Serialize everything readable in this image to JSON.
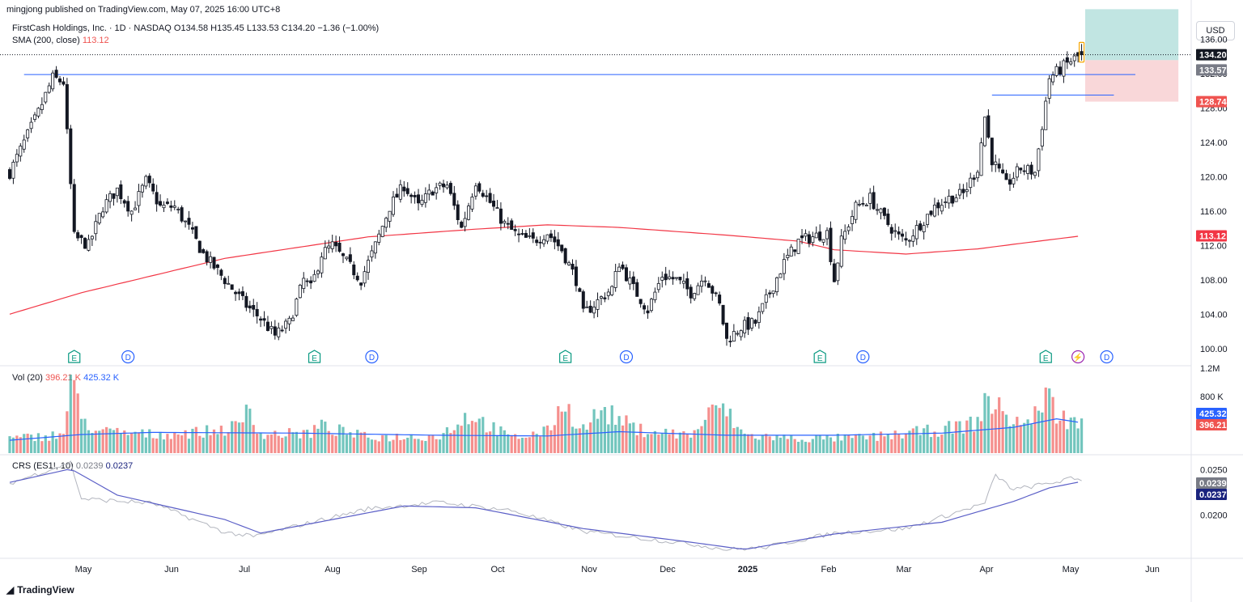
{
  "header": {
    "published": "mingjong published on TradingView.com, May 07, 2025 16:00 UTC+8",
    "symbol_line": "FirstCash Holdings, Inc. · 1D · NASDAQ",
    "open_label": "O134.58",
    "high_label": "H135.45",
    "low_label": "L133.53",
    "close_label": "C134.20",
    "change_label": "−1.36 (−1.00%)",
    "sma_label": "SMA (200, close)",
    "sma_value": "113.12",
    "currency_button": "USD"
  },
  "volume_legend": {
    "label": "Vol (20)",
    "value1": "396.21 K",
    "value2": "425.32 K"
  },
  "crs_legend": {
    "label": "CRS (ES1!, 10)",
    "value1": "0.0239",
    "value2": "0.0237"
  },
  "footer": {
    "brand": "TradingView"
  },
  "colors": {
    "up": "#26a69a",
    "down": "#ef5350",
    "sma": "#f23645",
    "vol_ma": "#2962ff",
    "crs_line": "#b2b5be",
    "crs_ma": "#5b5fc7",
    "hline": "#2962ff",
    "target_zone": "#b2dfdb",
    "stop_zone": "#f8cdd0"
  },
  "chart_data": {
    "type": "candlestick",
    "symbol": "FirstCash Holdings, Inc.",
    "interval": "1D",
    "exchange": "NASDAQ",
    "ohlc_last": {
      "open": 134.58,
      "high": 135.45,
      "low": 133.53,
      "close": 134.2,
      "change": -1.36,
      "change_pct": -1.0
    },
    "price_axis_ticks": [
      100.0,
      104.0,
      108.0,
      112.0,
      116.0,
      120.0,
      124.0,
      128.0,
      132.0,
      136.0
    ],
    "price_axis_labels": [
      "100.00",
      "104.00",
      "108.00",
      "112.00",
      "116.00",
      "120.00",
      "124.00",
      "128.00",
      "132.00",
      "136.00"
    ],
    "ylim": [
      98.0,
      138.5
    ],
    "time_axis_labels": [
      "May",
      "Jun",
      "Jul",
      "Aug",
      "Sep",
      "Oct",
      "Nov",
      "Dec",
      "2025",
      "Feb",
      "Mar",
      "Apr",
      "May",
      "Jun"
    ],
    "price_anchors": [
      [
        0,
        120.5
      ],
      [
        8,
        127.5
      ],
      [
        12,
        131.5
      ],
      [
        15,
        131.0
      ],
      [
        18,
        113.0
      ],
      [
        22,
        112.0
      ],
      [
        26,
        116.5
      ],
      [
        30,
        118.5
      ],
      [
        34,
        116.0
      ],
      [
        38,
        119.5
      ],
      [
        42,
        116.5
      ],
      [
        46,
        116.5
      ],
      [
        50,
        114.0
      ],
      [
        54,
        111.0
      ],
      [
        58,
        109.0
      ],
      [
        62,
        107.0
      ],
      [
        66,
        105.0
      ],
      [
        70,
        103.5
      ],
      [
        74,
        101.5
      ],
      [
        78,
        103.0
      ],
      [
        82,
        108.0
      ],
      [
        84,
        107.0
      ],
      [
        87,
        111.0
      ],
      [
        90,
        112.0
      ],
      [
        94,
        110.0
      ],
      [
        98,
        108.0
      ],
      [
        102,
        112.0
      ],
      [
        106,
        116.5
      ],
      [
        110,
        119.0
      ],
      [
        114,
        116.5
      ],
      [
        118,
        118.5
      ],
      [
        122,
        119.0
      ],
      [
        126,
        114.0
      ],
      [
        130,
        119.5
      ],
      [
        134,
        117.0
      ],
      [
        138,
        114.5
      ],
      [
        142,
        113.0
      ],
      [
        146,
        112.5
      ],
      [
        150,
        113.5
      ],
      [
        154,
        111.5
      ],
      [
        158,
        108.0
      ],
      [
        160,
        104.0
      ],
      [
        164,
        105.5
      ],
      [
        168,
        107.0
      ],
      [
        170,
        110.0
      ],
      [
        174,
        107.0
      ],
      [
        178,
        104.5
      ],
      [
        182,
        108.5
      ],
      [
        186,
        108.0
      ],
      [
        190,
        106.5
      ],
      [
        194,
        108.5
      ],
      [
        198,
        105.0
      ],
      [
        200,
        101.0
      ],
      [
        204,
        102.5
      ],
      [
        208,
        103.0
      ],
      [
        212,
        106.5
      ],
      [
        216,
        110.0
      ],
      [
        220,
        112.5
      ],
      [
        224,
        113.0
      ],
      [
        228,
        113.5
      ],
      [
        230,
        108.0
      ],
      [
        232,
        112.5
      ],
      [
        236,
        116.5
      ],
      [
        240,
        117.5
      ],
      [
        244,
        115.0
      ],
      [
        248,
        113.0
      ],
      [
        250,
        112.5
      ],
      [
        254,
        114.5
      ],
      [
        258,
        116.5
      ],
      [
        262,
        117.5
      ],
      [
        266,
        118.0
      ],
      [
        270,
        121.0
      ],
      [
        272,
        127.0
      ],
      [
        274,
        122.0
      ],
      [
        278,
        119.0
      ],
      [
        282,
        121.0
      ],
      [
        286,
        120.5
      ],
      [
        288,
        126.0
      ],
      [
        290,
        131.5
      ],
      [
        293,
        132.5
      ],
      [
        296,
        133.5
      ],
      [
        299,
        134.2
      ]
    ],
    "sma200_anchors": [
      [
        0,
        104.0
      ],
      [
        20,
        106.5
      ],
      [
        60,
        110.5
      ],
      [
        100,
        113.0
      ],
      [
        130,
        113.9
      ],
      [
        150,
        114.4
      ],
      [
        170,
        114.1
      ],
      [
        200,
        113.2
      ],
      [
        220,
        112.5
      ],
      [
        230,
        111.5
      ],
      [
        250,
        111.0
      ],
      [
        270,
        111.6
      ],
      [
        285,
        112.4
      ],
      [
        299,
        113.12
      ]
    ],
    "horizontal_lines": [
      {
        "price": 131.9,
        "from_bar": 4,
        "to_bar": 314
      },
      {
        "price": 129.5,
        "from_bar": 274,
        "to_bar": 308
      }
    ],
    "position_tool": {
      "entry": 133.57,
      "target": 139.5,
      "stop": 128.74,
      "from_bar": 300,
      "to_bar": 326
    },
    "price_labels": [
      {
        "value": "134.20",
        "style": "last"
      },
      {
        "value": "133.57",
        "style": "entry"
      },
      {
        "value": "128.74",
        "style": "stop"
      },
      {
        "value": "113.12",
        "style": "sma"
      }
    ],
    "event_markers": [
      {
        "type": "E",
        "bar": 18
      },
      {
        "type": "D",
        "bar": 33
      },
      {
        "type": "E",
        "bar": 85
      },
      {
        "type": "D",
        "bar": 101
      },
      {
        "type": "E",
        "bar": 155
      },
      {
        "type": "D",
        "bar": 172
      },
      {
        "type": "E",
        "bar": 226
      },
      {
        "type": "D",
        "bar": 238
      },
      {
        "type": "E",
        "bar": 289
      },
      {
        "type": "S",
        "bar": 298
      },
      {
        "type": "D",
        "bar": 306
      }
    ],
    "volume": {
      "axis_labels": [
        "1.2M",
        "800 K"
      ],
      "anchors": [
        [
          0,
          200
        ],
        [
          15,
          260
        ],
        [
          17,
          1050
        ],
        [
          20,
          480
        ],
        [
          25,
          300
        ],
        [
          40,
          260
        ],
        [
          55,
          300
        ],
        [
          65,
          380
        ],
        [
          66,
          750
        ],
        [
          70,
          260
        ],
        [
          84,
          280
        ],
        [
          86,
          380
        ],
        [
          100,
          220
        ],
        [
          120,
          240
        ],
        [
          128,
          540
        ],
        [
          140,
          210
        ],
        [
          150,
          300
        ],
        [
          154,
          700
        ],
        [
          160,
          340
        ],
        [
          165,
          600
        ],
        [
          175,
          330
        ],
        [
          190,
          250
        ],
        [
          198,
          680
        ],
        [
          205,
          250
        ],
        [
          220,
          200
        ],
        [
          240,
          220
        ],
        [
          260,
          330
        ],
        [
          270,
          420
        ],
        [
          272,
          770
        ],
        [
          280,
          450
        ],
        [
          285,
          420
        ],
        [
          289,
          860
        ],
        [
          292,
          540
        ],
        [
          299,
          396
        ]
      ],
      "ma_anchors": [
        [
          0,
          180
        ],
        [
          20,
          260
        ],
        [
          40,
          290
        ],
        [
          80,
          280
        ],
        [
          120,
          250
        ],
        [
          150,
          240
        ],
        [
          170,
          300
        ],
        [
          200,
          250
        ],
        [
          230,
          250
        ],
        [
          260,
          280
        ],
        [
          280,
          360
        ],
        [
          292,
          480
        ],
        [
          299,
          425
        ]
      ],
      "last_volume": "396.21 K",
      "ma_value": "425.32 K"
    },
    "crs": {
      "axis_labels": [
        "0.0250",
        "0.0200"
      ],
      "ylim": [
        0.0154,
        0.0263
      ],
      "anchors": [
        [
          0,
          0.0235
        ],
        [
          17,
          0.0258
        ],
        [
          20,
          0.0218
        ],
        [
          40,
          0.0213
        ],
        [
          60,
          0.0181
        ],
        [
          68,
          0.0176
        ],
        [
          80,
          0.0188
        ],
        [
          100,
          0.0207
        ],
        [
          120,
          0.0214
        ],
        [
          140,
          0.0205
        ],
        [
          160,
          0.0182
        ],
        [
          190,
          0.0168
        ],
        [
          200,
          0.0162
        ],
        [
          210,
          0.0164
        ],
        [
          230,
          0.018
        ],
        [
          250,
          0.0185
        ],
        [
          272,
          0.0213
        ],
        [
          275,
          0.0244
        ],
        [
          280,
          0.0228
        ],
        [
          290,
          0.0235
        ],
        [
          296,
          0.024
        ],
        [
          299,
          0.0239
        ]
      ],
      "ma_anchors": [
        [
          0,
          0.0236
        ],
        [
          17,
          0.0251
        ],
        [
          30,
          0.0222
        ],
        [
          60,
          0.0195
        ],
        [
          70,
          0.018
        ],
        [
          90,
          0.0195
        ],
        [
          110,
          0.021
        ],
        [
          130,
          0.0208
        ],
        [
          160,
          0.0185
        ],
        [
          190,
          0.017
        ],
        [
          205,
          0.0162
        ],
        [
          230,
          0.0179
        ],
        [
          260,
          0.0192
        ],
        [
          280,
          0.0215
        ],
        [
          290,
          0.023
        ],
        [
          299,
          0.0237
        ]
      ],
      "value": "0.0239",
      "ma_value": "0.0237"
    }
  }
}
